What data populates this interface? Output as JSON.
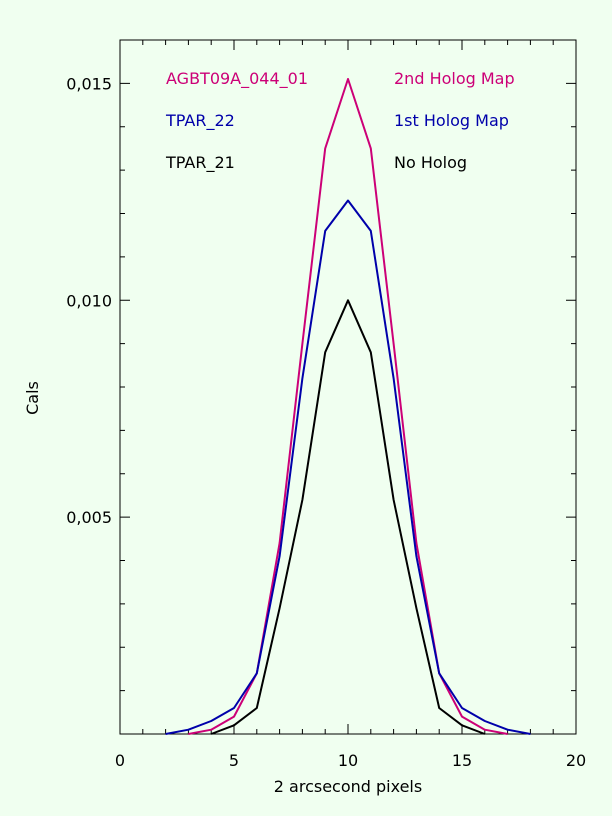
{
  "chart_data": {
    "type": "line",
    "title": "",
    "xlabel": "2 arcsecond pixels",
    "ylabel": "Cals",
    "xlim": [
      0,
      20
    ],
    "ylim": [
      0,
      0.016
    ],
    "x_ticks": [
      0,
      5,
      10,
      15,
      20
    ],
    "x_tick_labels": [
      "0",
      "5",
      "10",
      "15",
      "20"
    ],
    "y_ticks": [
      0.005,
      0.01,
      0.015
    ],
    "y_tick_labels": [
      "0,005",
      "0,010",
      "0,015"
    ],
    "grid": false,
    "legend_position": "top",
    "x": [
      0,
      1,
      2,
      3,
      4,
      5,
      6,
      7,
      8,
      9,
      10,
      11,
      12,
      13,
      14,
      15,
      16,
      17,
      18,
      19,
      20
    ],
    "series": [
      {
        "name": "AGBT09A_044_01",
        "note": "2nd Holog Map",
        "color": "#cc0077",
        "values": [
          0,
          0,
          0,
          0,
          0.0001,
          0.0004,
          0.0014,
          0.0044,
          0.009,
          0.0135,
          0.0151,
          0.0135,
          0.009,
          0.0044,
          0.0014,
          0.0004,
          0.0001,
          0,
          0,
          0,
          0
        ]
      },
      {
        "name": "TPAR_22",
        "note": "1st Holog Map",
        "color": "#0000aa",
        "values": [
          0,
          0,
          0,
          0.0001,
          0.0003,
          0.0006,
          0.0014,
          0.0041,
          0.0082,
          0.0116,
          0.0123,
          0.0116,
          0.0082,
          0.0041,
          0.0014,
          0.0006,
          0.0003,
          0.0001,
          0,
          0,
          0
        ]
      },
      {
        "name": "TPAR_21",
        "note": "No Holog",
        "color": "#000000",
        "values": [
          0,
          0,
          0,
          0,
          0,
          0.0002,
          0.0006,
          0.0029,
          0.0054,
          0.0088,
          0.01,
          0.0088,
          0.0054,
          0.0029,
          0.0006,
          0.0002,
          0,
          0,
          0,
          0,
          0
        ]
      }
    ]
  }
}
